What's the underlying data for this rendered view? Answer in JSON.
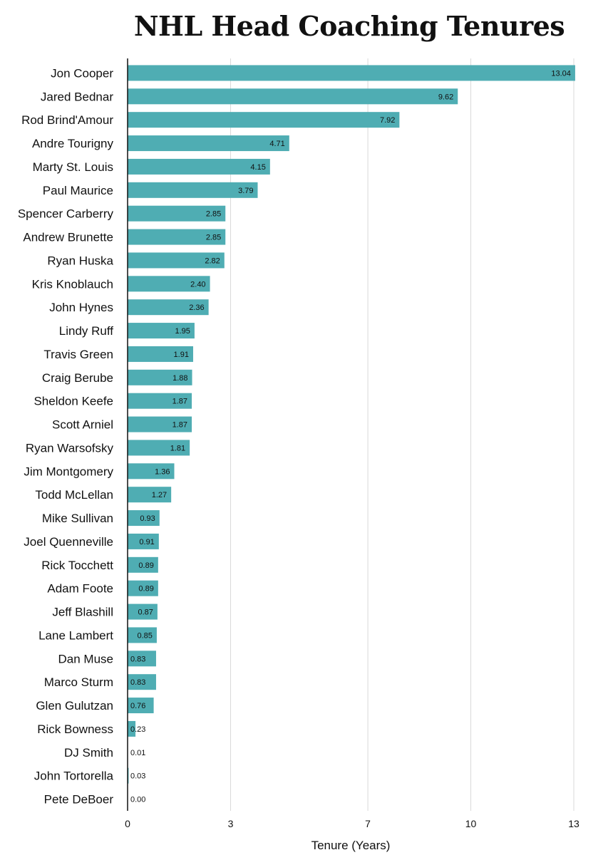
{
  "chart_data": {
    "type": "bar",
    "orientation": "horizontal",
    "title": "NHL Head Coaching Tenures",
    "xlabel": "Tenure (Years)",
    "ylabel": "",
    "xlim": [
      0,
      13
    ],
    "xticks": [
      0,
      3,
      7,
      10,
      13
    ],
    "grid": true,
    "bar_color": "#4FADB3",
    "categories": [
      "Jon Cooper",
      "Jared Bednar",
      "Rod Brind'Amour",
      "Andre Tourigny",
      "Marty St. Louis",
      "Paul Maurice",
      "Spencer Carberry",
      "Andrew Brunette",
      "Ryan Huska",
      "Kris Knoblauch",
      "John Hynes",
      "Lindy Ruff",
      "Travis Green",
      "Craig Berube",
      "Sheldon Keefe",
      "Scott Arniel",
      "Ryan Warsofsky",
      "Jim Montgomery",
      "Todd McLellan",
      "Mike Sullivan",
      "Joel Quenneville",
      "Rick Tocchett",
      "Adam Foote",
      "Jeff Blashill",
      "Lane Lambert",
      "Dan Muse",
      "Marco Sturm",
      "Glen Gulutzan",
      "Rick Bowness",
      "DJ Smith",
      "John Tortorella",
      "Pete DeBoer"
    ],
    "values": [
      13.04,
      9.62,
      7.92,
      4.71,
      4.15,
      3.79,
      2.85,
      2.85,
      2.82,
      2.4,
      2.36,
      1.95,
      1.91,
      1.88,
      1.87,
      1.87,
      1.81,
      1.36,
      1.27,
      0.93,
      0.91,
      0.89,
      0.89,
      0.87,
      0.85,
      0.83,
      0.83,
      0.76,
      0.23,
      0.01,
      0.03,
      0.0
    ],
    "value_labels": [
      "13.04",
      "9.62",
      "7.92",
      "4.71",
      "4.15",
      "3.79",
      "2.85",
      "2.85",
      "2.82",
      "2.40",
      "2.36",
      "1.95",
      "1.91",
      "1.88",
      "1.87",
      "1.87",
      "1.81",
      "1.36",
      "1.27",
      "0.93",
      "0.91",
      "0.89",
      "0.89",
      "0.87",
      "0.85",
      "0.83",
      "0.83",
      "0.76",
      "0.23",
      "0.01",
      "0.03",
      "0.00"
    ]
  }
}
